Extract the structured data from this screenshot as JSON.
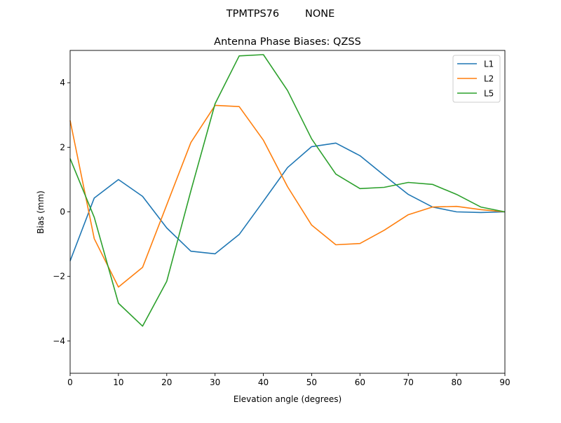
{
  "chart_data": {
    "type": "line",
    "suptitle": "TPMTPS76        NONE",
    "title": "Antenna Phase Biases: QZSS",
    "xlabel": "Elevation angle (degrees)",
    "ylabel": "Bias (mm)",
    "xlim": [
      0,
      90
    ],
    "ylim": [
      -5,
      5
    ],
    "xticks": [
      0,
      10,
      20,
      30,
      40,
      50,
      60,
      70,
      80,
      90
    ],
    "yticks": [
      -4,
      -2,
      0,
      2,
      4
    ],
    "ytick_labels": [
      "−4",
      "−2",
      "0",
      "2",
      "4"
    ],
    "grid": false,
    "legend_position": "top-right",
    "x": [
      0,
      5,
      10,
      15,
      20,
      25,
      30,
      35,
      40,
      45,
      50,
      55,
      60,
      65,
      70,
      75,
      80,
      85,
      90
    ],
    "series": [
      {
        "name": "L1",
        "color": "#1f77b4",
        "values": [
          -1.52,
          0.43,
          1.0,
          0.48,
          -0.5,
          -1.22,
          -1.3,
          -0.7,
          0.33,
          1.37,
          2.02,
          2.13,
          1.74,
          1.13,
          0.54,
          0.15,
          0.0,
          -0.02,
          0.0
        ]
      },
      {
        "name": "L2",
        "color": "#ff7f0e",
        "values": [
          2.83,
          -0.83,
          -2.33,
          -1.72,
          0.22,
          2.15,
          3.3,
          3.26,
          2.22,
          0.78,
          -0.41,
          -1.02,
          -0.98,
          -0.57,
          -0.09,
          0.15,
          0.17,
          0.07,
          0.0
        ]
      },
      {
        "name": "L5",
        "color": "#2ca02c",
        "values": [
          1.65,
          -0.17,
          -2.83,
          -3.54,
          -2.15,
          0.65,
          3.35,
          4.83,
          4.87,
          3.76,
          2.26,
          1.17,
          0.72,
          0.76,
          0.91,
          0.85,
          0.54,
          0.15,
          0.0
        ]
      }
    ]
  }
}
